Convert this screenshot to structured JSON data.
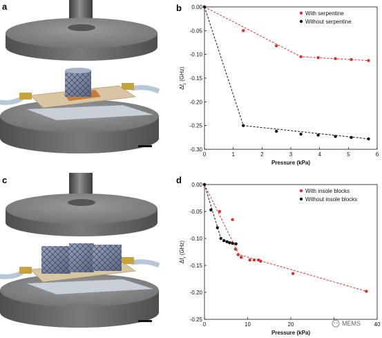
{
  "panels": {
    "a": {
      "label": "a"
    },
    "b": {
      "label": "b"
    },
    "c": {
      "label": "c"
    },
    "d": {
      "label": "d"
    }
  },
  "watermark": {
    "text": "MEMS"
  },
  "colors": {
    "red_series": "#d9302a",
    "black_series": "#111111",
    "metal_top": "#7d7d7d",
    "metal_side": "#5e5e5e",
    "pcb": "#d8c5a2",
    "blocks": "#7f8aa3",
    "plate": "#c9cfd6"
  },
  "chart_data": [
    {
      "panel": "b",
      "type": "scatter",
      "xlabel": "Pressure (kPa)",
      "ylabel": "Δf",
      "ylabel_sub": "r",
      "ylabel_unit": "(GHz)",
      "xlim": [
        0,
        6
      ],
      "ylim": [
        -0.3,
        0.0
      ],
      "x_ticks": [
        0,
        1,
        2,
        3,
        4,
        5,
        6
      ],
      "y_ticks": [
        0.0,
        -0.05,
        -0.1,
        -0.15,
        -0.2,
        -0.25,
        -0.3
      ],
      "x_tick_labels": [
        "0",
        "1",
        "2",
        "3",
        "4",
        "5",
        "6"
      ],
      "y_tick_labels": [
        "0.00",
        "-0.05",
        "-0.10",
        "-0.15",
        "-0.20",
        "-0.25",
        "-0.30"
      ],
      "legend_position": "top-right",
      "series": [
        {
          "name": "With serpentine",
          "color": "#d9302a",
          "points": [
            [
              0,
              0.0
            ],
            [
              1.35,
              -0.05
            ],
            [
              2.5,
              -0.082
            ],
            [
              3.35,
              -0.105
            ],
            [
              3.95,
              -0.107
            ],
            [
              4.55,
              -0.109
            ],
            [
              5.1,
              -0.111
            ],
            [
              5.7,
              -0.113
            ]
          ],
          "trend": [
            [
              0,
              0.0
            ],
            [
              3.35,
              -0.105
            ],
            [
              5.7,
              -0.113
            ]
          ]
        },
        {
          "name": "Without serpentine",
          "color": "#111111",
          "points": [
            [
              0,
              0.0
            ],
            [
              1.35,
              -0.25
            ],
            [
              2.5,
              -0.262
            ],
            [
              3.35,
              -0.268
            ],
            [
              3.95,
              -0.27
            ],
            [
              4.55,
              -0.273
            ],
            [
              5.1,
              -0.275
            ],
            [
              5.7,
              -0.278
            ]
          ],
          "trend": [
            [
              0,
              0.0
            ],
            [
              1.35,
              -0.25
            ],
            [
              5.7,
              -0.278
            ]
          ]
        }
      ]
    },
    {
      "panel": "d",
      "type": "scatter",
      "xlabel": "Pressure (kPa)",
      "ylabel": "Δf",
      "ylabel_sub": "r",
      "ylabel_unit": "(GHz)",
      "xlim": [
        0,
        40
      ],
      "ylim": [
        -0.25,
        0.0
      ],
      "x_ticks": [
        0,
        10,
        20,
        30,
        40
      ],
      "y_ticks": [
        0.0,
        -0.05,
        -0.1,
        -0.15,
        -0.2,
        -0.25
      ],
      "x_tick_labels": [
        "0",
        "10",
        "20",
        "",
        "40"
      ],
      "y_tick_labels": [
        "0.00",
        "-0.05",
        "-0.10",
        "-0.15",
        "-0.20",
        "-0.25"
      ],
      "legend_position": "top-right",
      "series": [
        {
          "name": "With insole blocks",
          "color": "#d9302a",
          "points": [
            [
              0,
              0.0
            ],
            [
              3.5,
              -0.05
            ],
            [
              6.5,
              -0.065
            ],
            [
              7.2,
              -0.12
            ],
            [
              7.8,
              -0.13
            ],
            [
              8.5,
              -0.135
            ],
            [
              10.5,
              -0.14
            ],
            [
              11.5,
              -0.14
            ],
            [
              12.5,
              -0.14
            ],
            [
              13.0,
              -0.142
            ],
            [
              20.5,
              -0.165
            ],
            [
              37.5,
              -0.198
            ]
          ],
          "trend": [
            [
              0,
              0.0
            ],
            [
              8.0,
              -0.13
            ],
            [
              37.5,
              -0.198
            ]
          ]
        },
        {
          "name": "Without insole blocks",
          "color": "#111111",
          "points": [
            [
              0,
              0.0
            ],
            [
              1.5,
              -0.047
            ],
            [
              3.0,
              -0.08
            ],
            [
              3.8,
              -0.1
            ],
            [
              4.5,
              -0.104
            ],
            [
              5.2,
              -0.106
            ],
            [
              5.8,
              -0.108
            ],
            [
              6.5,
              -0.109
            ],
            [
              7.3,
              -0.11
            ]
          ],
          "trend": [
            [
              0,
              0.0
            ],
            [
              3.8,
              -0.1
            ],
            [
              7.3,
              -0.11
            ]
          ]
        }
      ]
    }
  ]
}
